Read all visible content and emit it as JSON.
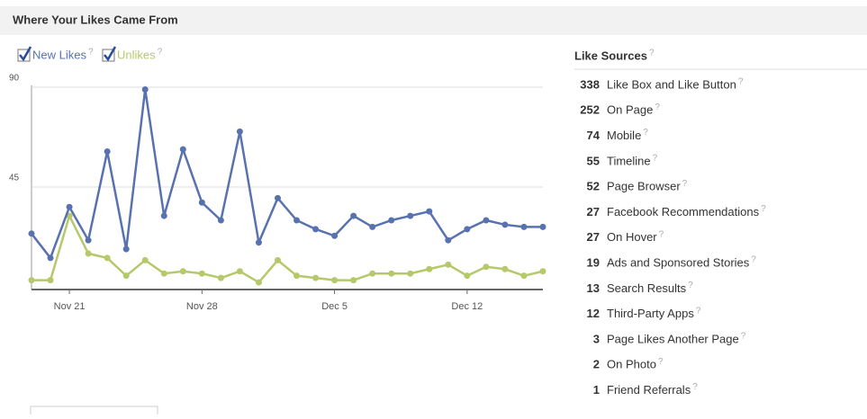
{
  "header": {
    "title": "Where Your Likes Came From"
  },
  "help_icon": "?",
  "chart_data": {
    "type": "line",
    "categories": [
      null,
      null,
      "Nov 21",
      null,
      null,
      null,
      null,
      null,
      null,
      "Nov 28",
      null,
      null,
      null,
      null,
      null,
      null,
      "Dec 5",
      null,
      null,
      null,
      null,
      null,
      null,
      "Dec 12",
      null,
      null,
      null,
      null
    ],
    "series": [
      {
        "name": "New Likes",
        "color": "#5872b0",
        "values": [
          24,
          13,
          36,
          21,
          61,
          17,
          89,
          32,
          62,
          38,
          30,
          70,
          20,
          40,
          30,
          26,
          23,
          32,
          27,
          30,
          32,
          34,
          21,
          26,
          30,
          28,
          27,
          27
        ]
      },
      {
        "name": "Unlikes",
        "color": "#b5c96a",
        "values": [
          3,
          3,
          32,
          15,
          13,
          5,
          12,
          6,
          7,
          6,
          4,
          7,
          2,
          12,
          5,
          4,
          3,
          3,
          6,
          6,
          6,
          8,
          10,
          5,
          9,
          8,
          5,
          7
        ]
      }
    ],
    "ylim": [
      0,
      90
    ],
    "yticks": [
      45,
      90
    ],
    "grid": true
  },
  "like_sources": {
    "title": "Like Sources",
    "rows": [
      {
        "count": "338",
        "label": "Like Box and Like Button"
      },
      {
        "count": "252",
        "label": "On Page"
      },
      {
        "count": "74",
        "label": "Mobile"
      },
      {
        "count": "55",
        "label": "Timeline"
      },
      {
        "count": "52",
        "label": "Page Browser"
      },
      {
        "count": "27",
        "label": "Facebook Recommendations"
      },
      {
        "count": "27",
        "label": "On Hover"
      },
      {
        "count": "19",
        "label": "Ads and Sponsored Stories"
      },
      {
        "count": "13",
        "label": "Search Results"
      },
      {
        "count": "12",
        "label": "Third-Party Apps"
      },
      {
        "count": "3",
        "label": "Page Likes Another Page"
      },
      {
        "count": "2",
        "label": "On Photo"
      },
      {
        "count": "1",
        "label": "Friend Referrals"
      }
    ]
  }
}
